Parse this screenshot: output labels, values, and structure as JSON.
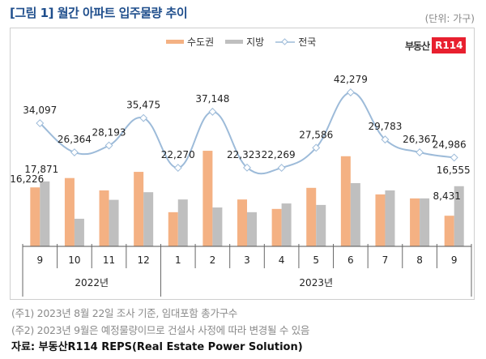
{
  "header": {
    "title": "[그림 1] 월간 아파트 입주물량 추이",
    "unit": "(단위: 가구)"
  },
  "logo": {
    "text": "부동산",
    "badge": "R114"
  },
  "colors": {
    "metro": "#f4b183",
    "regional": "#bfbfbf",
    "national": "#9dbbd9",
    "title": "#1f4e8c"
  },
  "chart_data": {
    "type": "bar",
    "title": "월간 아파트 입주물량 추이",
    "unit": "가구",
    "categories": [
      "9",
      "10",
      "11",
      "12",
      "1",
      "2",
      "3",
      "4",
      "5",
      "6",
      "7",
      "8",
      "9"
    ],
    "year_groups": [
      {
        "label": "2022년",
        "count": 4
      },
      {
        "label": "2023년",
        "count": 9
      }
    ],
    "legend": [
      "수도권",
      "지방",
      "전국"
    ],
    "legend_position": "top-center",
    "series": [
      {
        "name": "수도권",
        "type": "bar",
        "values": [
          16226,
          18800,
          15400,
          20500,
          9400,
          26300,
          12900,
          10300,
          16100,
          24800,
          14300,
          13200,
          8431
        ]
      },
      {
        "name": "지방",
        "type": "bar",
        "values": [
          17871,
          7600,
          12800,
          14900,
          12900,
          10700,
          9400,
          11800,
          11400,
          17400,
          15400,
          13200,
          16555
        ]
      },
      {
        "name": "전국",
        "type": "line",
        "values": [
          34097,
          26364,
          28193,
          35475,
          22270,
          37148,
          22323,
          22269,
          27586,
          42279,
          29783,
          26367,
          24986
        ]
      }
    ],
    "bar_labels": [
      {
        "series": "수도권",
        "index": 0,
        "text": "16,226"
      },
      {
        "series": "지방",
        "index": 0,
        "text": "17,871"
      },
      {
        "series": "수도권",
        "index": 12,
        "text": "8,431"
      },
      {
        "series": "지방",
        "index": 12,
        "text": "16,555"
      }
    ],
    "line_labels": [
      "34,097",
      "26,364",
      "28,193",
      "35,475",
      "22,270",
      "37,148",
      "22,323",
      "22,269",
      "27,586",
      "42,279",
      "29,783",
      "26,367",
      "24,986"
    ],
    "grid": false
  },
  "notes": [
    "(주1) 2023년 8월 22일 조사 기준, 임대포함 총가구수",
    "(주2) 2023년 9월은 예정물량이므로 건설사 사정에 따라 변경될 수 있음"
  ],
  "source": "자료: 부동산R114 REPS(Real Estate Power Solution)"
}
